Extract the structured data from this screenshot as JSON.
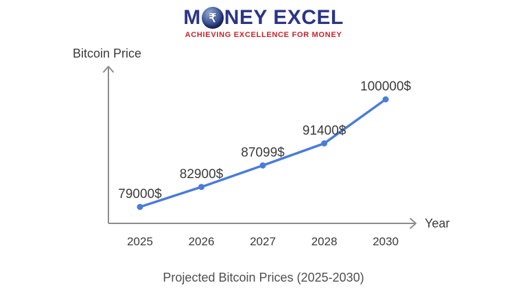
{
  "brand": {
    "full_name": "MONEY EXCEL",
    "before_globe": "M",
    "globe_symbol": "₹",
    "after_globe": "NEY EXCEL",
    "tagline": "ACHIEVING EXCELLENCE FOR MONEY"
  },
  "chart_data": {
    "type": "line",
    "categories": [
      "2025",
      "2026",
      "2027",
      "2028",
      "2030"
    ],
    "values": [
      79000,
      82900,
      87099,
      91400,
      100000
    ],
    "point_labels": [
      "79000$",
      "82900$",
      "87099$",
      "91400$",
      "100000$"
    ],
    "title": "Projected Bitcoin Prices (2025-2030)",
    "xlabel": "Year",
    "ylabel": "Bitcoin Price",
    "grid": false,
    "legend_position": "none",
    "marker": "circle",
    "y_axis_ticks": [],
    "axis_style": "arrows"
  },
  "colors": {
    "background": "#ffffff",
    "line": "#4a7cd9",
    "axis": "#8c8c8c",
    "label_text": "#3a3a3a",
    "title_text": "#4e4e4e",
    "brand_navy": "#2b3585",
    "brand_red": "#cb2128"
  }
}
